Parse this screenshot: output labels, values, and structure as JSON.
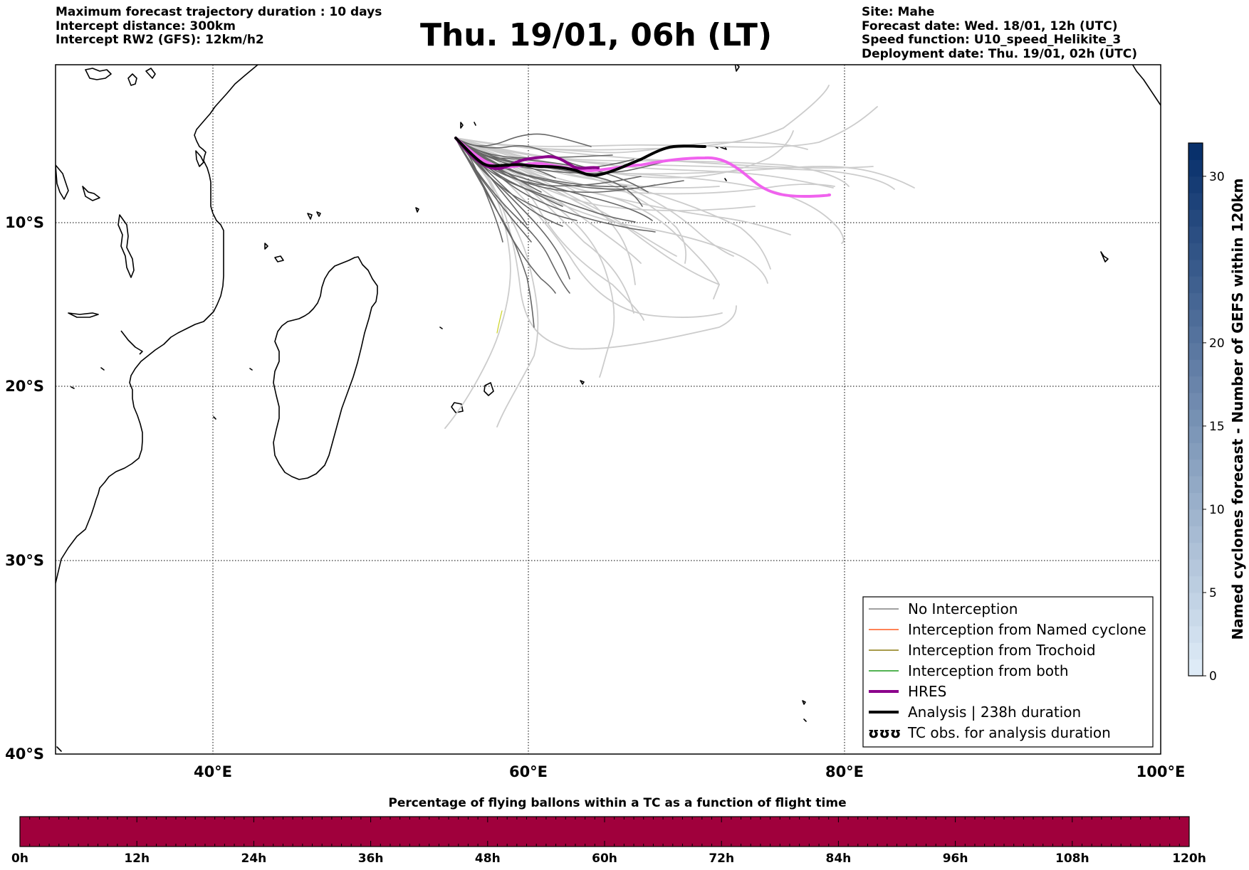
{
  "header": {
    "left": [
      "Maximum forecast trajectory duration : 10 days",
      "Intercept distance: 300km",
      "Intercept RW2 (GFS):  12km/h2"
    ],
    "title": "Thu. 19/01, 06h (LT)",
    "right": [
      "Site: Mahe",
      "Forecast date: Wed. 18/01, 12h (UTC)",
      "Speed function: U10_speed_Helikite_3",
      "Deployment date: Thu. 19/01, 02h (UTC)"
    ]
  },
  "map": {
    "lon_range": [
      30,
      100
    ],
    "lat_range": [
      -40,
      -0.5
    ],
    "lat_labels": [
      "10°S",
      "20°S",
      "30°S",
      "40°S"
    ],
    "lon_labels": [
      "40°E",
      "60°E",
      "80°E",
      "100°E"
    ]
  },
  "legend": {
    "items": [
      {
        "label": "No Interception",
        "color": "#808080"
      },
      {
        "label": "Interception from Named cyclone",
        "color": "#ff5a1e"
      },
      {
        "label": "Interception from Trochoid",
        "color": "#8c7a10"
      },
      {
        "label": "Interception from both",
        "color": "#1a9a1a"
      },
      {
        "label": "HRES",
        "color": "#8b008b"
      },
      {
        "label": "Analysis | 238h duration",
        "color": "#000000"
      },
      {
        "label": "TC obs. for analysis duration",
        "color": "#000000",
        "symbol": "ʊʊʊ"
      }
    ]
  },
  "right_colorbar": {
    "label": "Named cyclones forecast - Number of GEFS within 120km",
    "ticks": [
      "0",
      "5",
      "10",
      "15",
      "20",
      "30"
    ],
    "range": [
      0,
      32
    ]
  },
  "bottom_bar": {
    "title": "Percentage of flying ballons within a TC as a function of flight time",
    "color": "#a0003c",
    "ticks": [
      "0h",
      "12h",
      "24h",
      "36h",
      "48h",
      "60h",
      "72h",
      "84h",
      "96h",
      "108h",
      "120h"
    ]
  }
}
